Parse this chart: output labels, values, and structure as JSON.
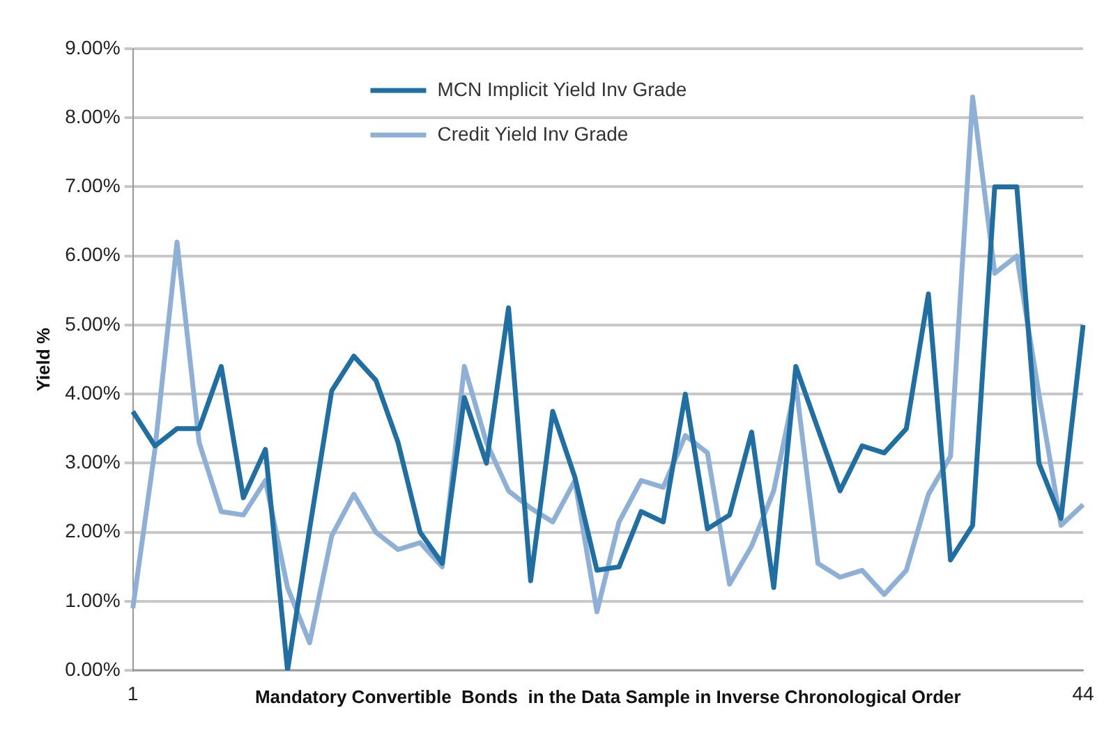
{
  "chart_data": {
    "type": "line",
    "ylabel": "Yield %",
    "xlabel": "Mandatory Convertible  Bonds  in the Data Sample in Inverse Chronological Order",
    "categories": [
      "1",
      null,
      null,
      null,
      null,
      null,
      null,
      null,
      null,
      null,
      null,
      null,
      null,
      null,
      null,
      null,
      null,
      null,
      null,
      null,
      null,
      null,
      null,
      null,
      null,
      null,
      null,
      null,
      null,
      null,
      null,
      null,
      null,
      null,
      null,
      null,
      null,
      null,
      null,
      null,
      null,
      null,
      null,
      "44"
    ],
    "series": [
      {
        "name": "MCN Implicit Yield Inv Grade",
        "color": "#1f6fa3",
        "values": [
          3.75,
          3.25,
          3.5,
          3.5,
          4.4,
          2.5,
          3.2,
          0,
          2.05,
          4.05,
          4.55,
          4.2,
          3.3,
          2.0,
          1.55,
          3.95,
          3.0,
          5.25,
          1.3,
          3.75,
          2.8,
          1.45,
          1.5,
          2.3,
          2.15,
          4.0,
          2.05,
          2.25,
          3.45,
          1.2,
          4.4,
          3.5,
          2.6,
          3.25,
          3.15,
          3.5,
          5.45,
          1.6,
          2.1,
          7.0,
          7.0,
          3.0,
          2.2,
          5.0
        ]
      },
      {
        "name": "Credit Yield Inv Grade",
        "color": "#8fb0d6",
        "values": [
          0.9,
          3.2,
          6.2,
          3.3,
          2.3,
          2.25,
          2.75,
          1.2,
          0.4,
          1.95,
          2.55,
          2.0,
          1.75,
          1.85,
          1.5,
          4.4,
          3.3,
          2.6,
          2.35,
          2.15,
          2.75,
          0.85,
          2.15,
          2.75,
          2.65,
          3.4,
          3.15,
          1.25,
          1.8,
          2.6,
          4.15,
          1.55,
          1.35,
          1.45,
          1.1,
          1.45,
          2.55,
          3.1,
          8.3,
          5.75,
          6.0,
          4.0,
          2.1,
          2.4
        ]
      }
    ],
    "ylim": [
      0,
      9
    ],
    "yticks": [
      {
        "value": 0,
        "label": "0.00%"
      },
      {
        "value": 1,
        "label": "1.00%"
      },
      {
        "value": 2,
        "label": "2.00%"
      },
      {
        "value": 3,
        "label": "3.00%"
      },
      {
        "value": 4,
        "label": "4.00%"
      },
      {
        "value": 5,
        "label": "5.00%"
      },
      {
        "value": 6,
        "label": "6.00%"
      },
      {
        "value": 7,
        "label": "7.00%"
      },
      {
        "value": 8,
        "label": "8.00%"
      },
      {
        "value": 9,
        "label": "9.00%"
      }
    ],
    "grid": "y",
    "legend": "top",
    "marker": "none",
    "line_style": "solid"
  }
}
